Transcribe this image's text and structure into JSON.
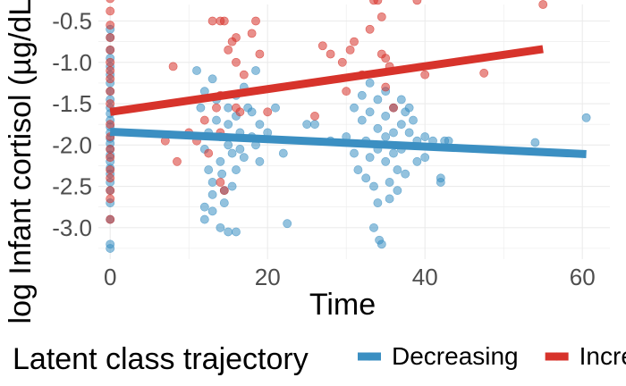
{
  "chart_data": {
    "type": "scatter",
    "title": "",
    "xlabel": "Time",
    "ylabel": "log Infant cortisol (µg/dL)",
    "xlim": [
      -1.5,
      63.5
    ],
    "ylim": [
      -3.38,
      -0.3
    ],
    "x_ticks": [
      0,
      20,
      40,
      60
    ],
    "y_ticks": [
      -0.5,
      -1.0,
      -1.5,
      -2.0,
      -2.5,
      -3.0
    ],
    "x_tick_labels": [
      "0",
      "20",
      "40",
      "60"
    ],
    "y_tick_labels": [
      "-0.5",
      "-1.0",
      "-1.5",
      "-2.0",
      "-2.5",
      "-3.0"
    ],
    "grid": true,
    "legend": {
      "title": "Latent class trajectory",
      "position": "bottom",
      "entries": [
        "Decreasing",
        "Increasing"
      ]
    },
    "series": [
      {
        "name": "Decreasing",
        "color": "#3b8fc2",
        "trend_line": {
          "x": [
            0,
            60.5
          ],
          "y": [
            -1.84,
            -2.11
          ]
        },
        "points": [
          [
            0,
            -0.6
          ],
          [
            0,
            -0.7
          ],
          [
            0,
            -0.85
          ],
          [
            0,
            -0.95
          ],
          [
            0,
            -1.05
          ],
          [
            0,
            -1.15
          ],
          [
            0,
            -1.25
          ],
          [
            0,
            -1.35
          ],
          [
            0,
            -1.45
          ],
          [
            0,
            -1.55
          ],
          [
            0,
            -1.62
          ],
          [
            0,
            -1.7
          ],
          [
            0,
            -1.78
          ],
          [
            0,
            -1.85
          ],
          [
            0,
            -1.92
          ],
          [
            0,
            -1.98
          ],
          [
            0,
            -2.05
          ],
          [
            0,
            -2.12
          ],
          [
            0,
            -2.2
          ],
          [
            0,
            -2.28
          ],
          [
            0,
            -2.35
          ],
          [
            0,
            -2.45
          ],
          [
            0,
            -2.55
          ],
          [
            0,
            -2.7
          ],
          [
            0,
            -2.9
          ],
          [
            0,
            -3.2
          ],
          [
            0,
            -3.25
          ],
          [
            11,
            -1.1
          ],
          [
            11.5,
            -1.55
          ],
          [
            12,
            -1.35
          ],
          [
            12.5,
            -1.85
          ],
          [
            12,
            -2.05
          ],
          [
            12.5,
            -2.3
          ],
          [
            13,
            -2.45
          ],
          [
            13,
            -2.6
          ],
          [
            12,
            -2.9
          ],
          [
            12,
            -2.75
          ],
          [
            13,
            -1.2
          ],
          [
            13.5,
            -1.45
          ],
          [
            13.5,
            -1.7
          ],
          [
            14,
            -1.9
          ],
          [
            14,
            -2.2
          ],
          [
            14.2,
            -2.35
          ],
          [
            14.5,
            -2.55
          ],
          [
            14.5,
            -2.7
          ],
          [
            15,
            -1.55
          ],
          [
            15,
            -1.75
          ],
          [
            15,
            -2.0
          ],
          [
            15.5,
            -2.1
          ],
          [
            15.5,
            -2.5
          ],
          [
            16,
            -1.4
          ],
          [
            16,
            -1.65
          ],
          [
            16.5,
            -1.85
          ],
          [
            16.5,
            -2.05
          ],
          [
            16,
            -2.3
          ],
          [
            17,
            -1.3
          ],
          [
            17,
            -2.15
          ],
          [
            17.5,
            -1.55
          ],
          [
            18,
            -1.6
          ],
          [
            18,
            -1.9
          ],
          [
            18.5,
            -1.1
          ],
          [
            18.5,
            -2.0
          ],
          [
            19,
            -1.75
          ],
          [
            19,
            -2.2
          ],
          [
            14,
            -3.0
          ],
          [
            15,
            -3.05
          ],
          [
            16,
            -3.05
          ],
          [
            13,
            -2.8
          ],
          [
            20,
            -1.85
          ],
          [
            21,
            -1.55
          ],
          [
            22,
            -2.1
          ],
          [
            22.5,
            -2.95
          ],
          [
            25,
            -1.75
          ],
          [
            26,
            -1.75
          ],
          [
            28,
            -1.95
          ],
          [
            30,
            -1.9
          ],
          [
            31,
            -1.55
          ],
          [
            31,
            -2.1
          ],
          [
            31.5,
            -2.3
          ],
          [
            32,
            -1.4
          ],
          [
            32,
            -1.7
          ],
          [
            32.5,
            -1.95
          ],
          [
            32.5,
            -2.4
          ],
          [
            33,
            -1.25
          ],
          [
            33,
            -1.6
          ],
          [
            33,
            -2.15
          ],
          [
            33.5,
            -2.5
          ],
          [
            33.5,
            -3.0
          ],
          [
            34,
            -1.45
          ],
          [
            34,
            -1.8
          ],
          [
            34,
            -2.05
          ],
          [
            34,
            -2.7
          ],
          [
            34.2,
            -3.15
          ],
          [
            34.5,
            -3.2
          ],
          [
            35,
            -1.35
          ],
          [
            35,
            -1.65
          ],
          [
            35,
            -1.9
          ],
          [
            35,
            -2.2
          ],
          [
            35.5,
            -2.45
          ],
          [
            35.5,
            -2.65
          ],
          [
            36,
            -1.55
          ],
          [
            36,
            -1.85
          ],
          [
            36,
            -2.1
          ],
          [
            36.5,
            -2.3
          ],
          [
            36.5,
            -2.55
          ],
          [
            37,
            -1.45
          ],
          [
            37,
            -1.75
          ],
          [
            37,
            -2.05
          ],
          [
            37.5,
            -1.6
          ],
          [
            37.5,
            -2.35
          ],
          [
            38,
            -1.55
          ],
          [
            38,
            -1.85
          ],
          [
            38.5,
            -1.7
          ],
          [
            39,
            -1.95
          ],
          [
            39,
            -2.2
          ],
          [
            40,
            -1.9
          ],
          [
            40,
            -2.15
          ],
          [
            41,
            -1.95
          ],
          [
            42,
            -2.4
          ],
          [
            42,
            -2.45
          ],
          [
            42.5,
            -1.95
          ],
          [
            43,
            -1.95
          ],
          [
            54,
            -1.97
          ],
          [
            60.5,
            -1.67
          ]
        ]
      },
      {
        "name": "Increasing",
        "color": "#d7332b",
        "trend_line": {
          "x": [
            0,
            55
          ],
          "y": [
            -1.6,
            -0.84
          ]
        },
        "points": [
          [
            0,
            -0.23
          ],
          [
            0,
            -0.38
          ],
          [
            0,
            -0.55
          ],
          [
            0,
            -0.7
          ],
          [
            0,
            -0.85
          ],
          [
            0,
            -1.0
          ],
          [
            0,
            -1.1
          ],
          [
            0,
            -1.2
          ],
          [
            0,
            -1.35
          ],
          [
            0,
            -1.5
          ],
          [
            0,
            -1.75
          ],
          [
            0,
            -1.9
          ],
          [
            0,
            -2.05
          ],
          [
            0,
            -2.15
          ],
          [
            0,
            -2.3
          ],
          [
            0,
            -2.4
          ],
          [
            0,
            -2.55
          ],
          [
            0,
            -2.65
          ],
          [
            0,
            -2.9
          ],
          [
            7,
            -1.95
          ],
          [
            8,
            -1.05
          ],
          [
            8.5,
            -2.2
          ],
          [
            10,
            -1.85
          ],
          [
            11,
            -1.95
          ],
          [
            12,
            -1.7
          ],
          [
            12.5,
            -2.1
          ],
          [
            13,
            -0.5
          ],
          [
            13.5,
            -1.55
          ],
          [
            14,
            -0.5
          ],
          [
            14.5,
            -0.5
          ],
          [
            14,
            -1.4
          ],
          [
            14,
            -1.85
          ],
          [
            14,
            -2.45
          ],
          [
            14.5,
            -2.55
          ],
          [
            15,
            -0.85
          ],
          [
            15.5,
            -0.75
          ],
          [
            16,
            -0.7
          ],
          [
            16,
            -1.0
          ],
          [
            16,
            -1.55
          ],
          [
            16.5,
            -1.6
          ],
          [
            17,
            -1.15
          ],
          [
            18,
            -0.65
          ],
          [
            18.5,
            -0.5
          ],
          [
            19,
            -0.9
          ],
          [
            20,
            -1.6
          ],
          [
            26,
            -1.65
          ],
          [
            27,
            -0.8
          ],
          [
            28,
            -0.9
          ],
          [
            29.5,
            -1.0
          ],
          [
            30,
            -1.35
          ],
          [
            30.5,
            -0.85
          ],
          [
            31,
            -0.75
          ],
          [
            32,
            -1.15
          ],
          [
            33,
            -0.6
          ],
          [
            33.5,
            -0.25
          ],
          [
            34,
            -0.25
          ],
          [
            34.5,
            -0.45
          ],
          [
            34.5,
            -0.9
          ],
          [
            35,
            -0.95
          ],
          [
            35,
            -1.3
          ],
          [
            35.5,
            -1.05
          ],
          [
            36,
            -1.55
          ],
          [
            39,
            -0.25
          ],
          [
            40,
            -1.15
          ],
          [
            47.5,
            -1.13
          ],
          [
            55,
            -0.3
          ]
        ]
      }
    ]
  }
}
